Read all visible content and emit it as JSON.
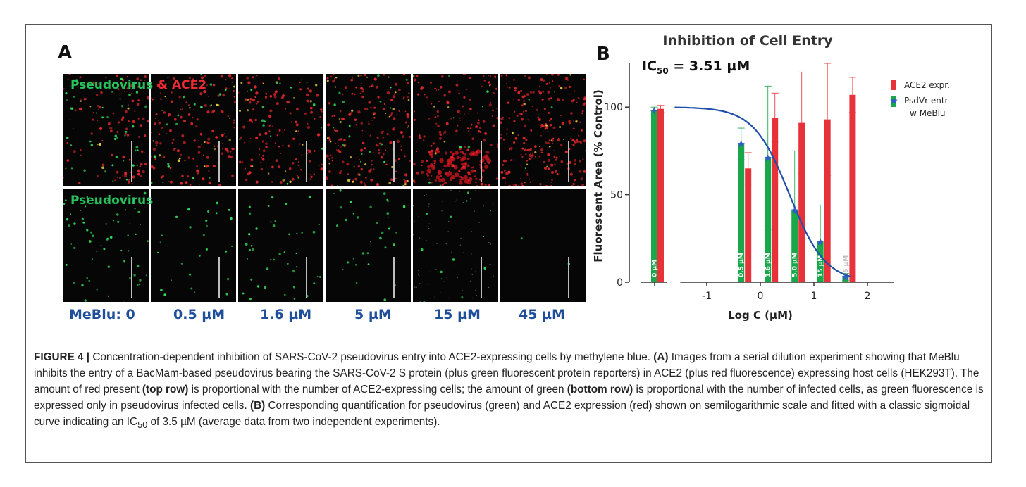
{
  "panel_a": {
    "letter": "A",
    "top_label_part1": "Pseudovirus",
    "top_label_part2": " & ACE2",
    "bottom_label": "Pseudovirus",
    "concentrations": [
      "MeBlu: 0",
      "0.5 µM",
      "1.6 µM",
      "5 µM",
      "15 µM",
      "45 µM"
    ]
  },
  "panel_b": {
    "letter": "B"
  },
  "chart_data": {
    "type": "bar",
    "title": "Inhibition of Cell Entry",
    "annotation_ic50_prefix": "IC",
    "annotation_ic50_sub": "50",
    "annotation_ic50_value": " = 3.51 µM",
    "xlabel": "Log C (µM)",
    "ylabel": "Fluorescent Area (% Control)",
    "yticks": [
      0,
      50,
      100
    ],
    "ylim": [
      0,
      125
    ],
    "xticks": [
      -1,
      0,
      1,
      2
    ],
    "xlim": [
      -1.6,
      2.5
    ],
    "legend_position": "top-right",
    "legend": [
      "ACE2 expr.",
      "PsdVr entr w MeBlu"
    ],
    "colors": {
      "green": "#1aa64a",
      "red": "#e8323a",
      "fit": "#1d4fa8",
      "marker": "#2f5ec4"
    },
    "control_group": {
      "label": "0 µM",
      "green": 98,
      "green_err": 2,
      "red": 99,
      "red_err": 2
    },
    "groups": [
      {
        "label": "0.5 µM",
        "logc": -0.3,
        "green": 79,
        "green_err": 9,
        "red": 65,
        "red_err": 9
      },
      {
        "label": "1.6 µM",
        "logc": 0.2,
        "green": 71,
        "green_err": 41,
        "red": 94,
        "red_err": 14
      },
      {
        "label": "5.0 µM",
        "logc": 0.7,
        "green": 41,
        "green_err": 34,
        "red": 91,
        "red_err": 29
      },
      {
        "label": "15 µM",
        "logc": 1.18,
        "green": 23,
        "green_err": 21,
        "red": 93,
        "red_err": 32
      },
      {
        "label": "45 µM",
        "logc": 1.65,
        "green": 3,
        "green_err": 2,
        "red": 107,
        "red_err": 10
      }
    ],
    "fit": {
      "type": "sigmoid",
      "top": 100,
      "bottom": 0,
      "log_ic50": 0.545,
      "hill": -1.3,
      "x_range": [
        -1.6,
        1.68
      ]
    }
  },
  "caption": {
    "fig_label": "FIGURE 4 |",
    "s1": " Concentration-dependent inhibition of SARS-CoV-2 pseudovirus entry into ACE2-expressing cells by methylene blue. ",
    "a_label": "(A)",
    "s2": " Images from a serial dilution experiment showing that MeBlu inhibits the entry of a BacMam-based pseudovirus bearing the SARS-CoV-2 S protein (plus green fluorescent protein reporters) in ACE2 (plus red fluorescence) expressing host cells (HEK293T). The amount of red present ",
    "top_row": "(top row)",
    "s3": " is proportional with the number of ACE2-expressing cells; the amount of green ",
    "bottom_row": "(bottom row)",
    "s4": " is proportional with the number of infected cells, as green fluorescence is expressed only in pseudovirus infected cells. ",
    "b_label": "(B)",
    "s5": " Corresponding quantification for pseudovirus (green) and ACE2 expression (red) shown on semilogarithmic scale and fitted with a classic sigmoidal curve indicating an IC",
    "ic_sub": "50",
    "s6": " of 3.5 µM (average data from two independent experiments)."
  }
}
